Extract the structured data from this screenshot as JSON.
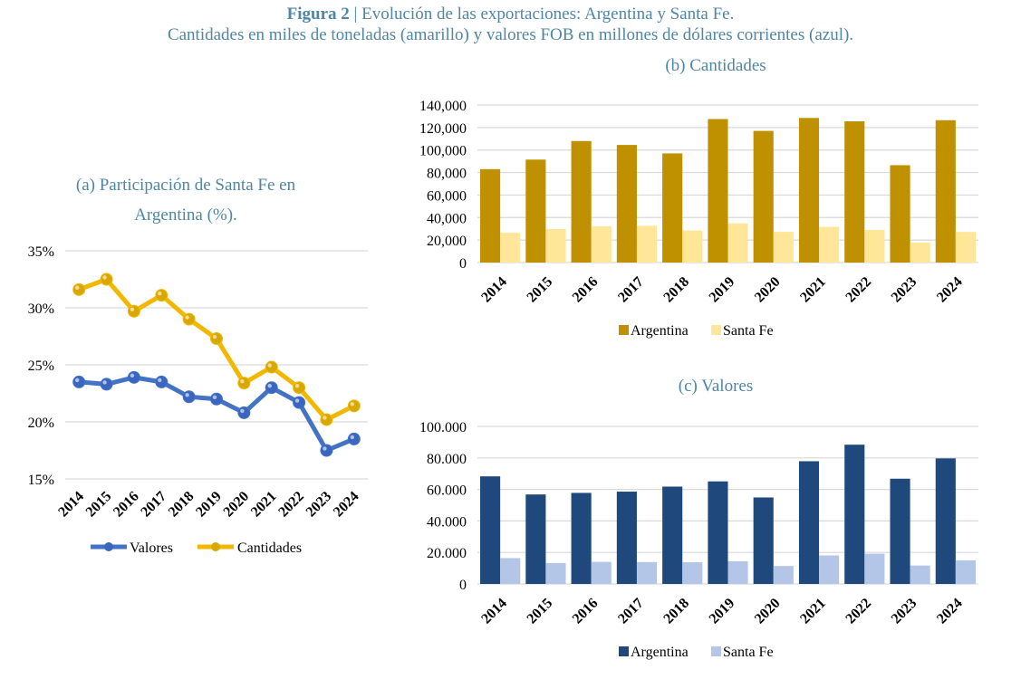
{
  "figure": {
    "label": "Figura 2",
    "title_rest": " | Evolución de las exportaciones: Argentina y Santa Fe.",
    "subtitle": "Cantidades en miles de toneladas (amarillo) y valores FOB en millones de dólares corrientes (azul)."
  },
  "colors": {
    "title": "#4e86a6",
    "valores_line": "#4472c4",
    "cantidades_line": "#f2b800",
    "gold_argentina": "#bf9000",
    "gold_santafe": "#ffe699",
    "navy_argentina": "#1f497d",
    "navy_santafe": "#b4c6e7",
    "grid": "#d9d9d9"
  },
  "chart_data": [
    {
      "id": "a",
      "type": "line",
      "title_line1": "(a)  Participación de Santa Fe en",
      "title_line2": "Argentina (%).",
      "categories": [
        "2014",
        "2015",
        "2016",
        "2017",
        "2018",
        "2019",
        "2020",
        "2021",
        "2022",
        "2023",
        "2024"
      ],
      "series": [
        {
          "name": "Valores",
          "values": [
            23.5,
            23.3,
            23.9,
            23.5,
            22.2,
            22.0,
            20.8,
            23.0,
            21.7,
            17.5,
            18.5
          ]
        },
        {
          "name": "Cantidades",
          "values": [
            31.6,
            32.5,
            29.7,
            31.1,
            29.0,
            27.3,
            23.4,
            24.8,
            23.0,
            20.2,
            21.4
          ]
        }
      ],
      "ylim": [
        15,
        35
      ],
      "yticks": [
        "15%",
        "20%",
        "25%",
        "30%",
        "35%"
      ],
      "ytick_values": [
        15,
        20,
        25,
        30,
        35
      ],
      "grid": true,
      "legend": "bottom"
    },
    {
      "id": "b",
      "type": "bar",
      "title": "(b)  Cantidades",
      "categories": [
        "2014",
        "2015",
        "2016",
        "2017",
        "2018",
        "2019",
        "2020",
        "2021",
        "2022",
        "2023",
        "2024"
      ],
      "series": [
        {
          "name": "Argentina",
          "values": [
            83000,
            91500,
            108000,
            104500,
            97000,
            127500,
            117000,
            128500,
            125500,
            86500,
            126500
          ]
        },
        {
          "name": "Santa Fe",
          "values": [
            26500,
            29800,
            32300,
            32700,
            28500,
            34800,
            27300,
            31700,
            29000,
            17700,
            27200
          ]
        }
      ],
      "ylim": [
        0,
        140000
      ],
      "yticks": [
        "0",
        "20,000",
        "40,000",
        "60,000",
        "80,000",
        "100,000",
        "120,000",
        "140,000"
      ],
      "ytick_values": [
        0,
        20000,
        40000,
        60000,
        80000,
        100000,
        120000,
        140000
      ],
      "grid": true,
      "legend": "bottom"
    },
    {
      "id": "c",
      "type": "bar",
      "title": "(c)  Valores",
      "categories": [
        "2014",
        "2015",
        "2016",
        "2017",
        "2018",
        "2019",
        "2020",
        "2021",
        "2022",
        "2023",
        "2024"
      ],
      "series": [
        {
          "name": "Argentina",
          "values": [
            68300,
            56800,
            57800,
            58600,
            61800,
            65100,
            54900,
            77900,
            88400,
            66800,
            79700
          ]
        },
        {
          "name": "Santa Fe",
          "values": [
            16400,
            13300,
            14000,
            13900,
            13800,
            14400,
            11400,
            18100,
            19200,
            11700,
            15000
          ]
        }
      ],
      "ylim": [
        0,
        100000
      ],
      "yticks": [
        "0",
        "20.000",
        "40.000",
        "60.000",
        "80.000",
        "100.000"
      ],
      "ytick_values": [
        0,
        20000,
        40000,
        60000,
        80000,
        100000
      ],
      "grid": true,
      "legend": "bottom"
    }
  ]
}
